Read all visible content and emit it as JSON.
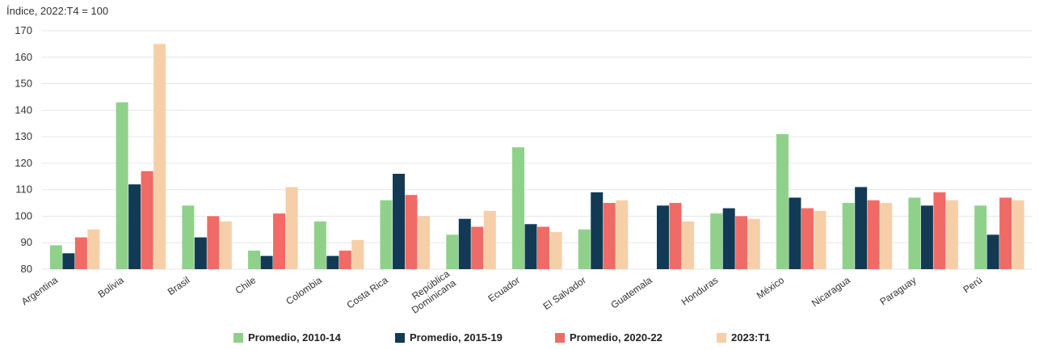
{
  "chart_data": {
    "type": "bar",
    "title": "",
    "unit_label": "Índice, 2022:T4 = 100",
    "ylim": [
      80,
      170
    ],
    "yticks": [
      80,
      90,
      100,
      110,
      120,
      130,
      140,
      150,
      160,
      170
    ],
    "grid": true,
    "legend_position": "bottom",
    "categories": [
      [
        "Argentina"
      ],
      [
        "Bolivia"
      ],
      [
        "Brasil"
      ],
      [
        "Chile"
      ],
      [
        "Colombia"
      ],
      [
        "Costa Rica"
      ],
      [
        "República",
        "Dominicana"
      ],
      [
        "Ecuador"
      ],
      [
        "El Salvador"
      ],
      [
        "Guatemala"
      ],
      [
        "Honduras"
      ],
      [
        "México"
      ],
      [
        "Nicaragua"
      ],
      [
        "Paraguay"
      ],
      [
        "Perú"
      ]
    ],
    "series": [
      {
        "name": "Promedio, 2010-14",
        "color": "#8fd18a",
        "values": [
          89,
          143,
          104,
          87,
          98,
          106,
          93,
          126,
          95,
          null,
          101,
          131,
          105,
          107,
          104
        ]
      },
      {
        "name": "Promedio, 2015-19",
        "color": "#123a55",
        "values": [
          86,
          112,
          92,
          85,
          85,
          116,
          99,
          97,
          109,
          104,
          103,
          107,
          111,
          104,
          93
        ]
      },
      {
        "name": "Promedio, 2020-22",
        "color": "#f06a66",
        "values": [
          92,
          117,
          100,
          101,
          87,
          108,
          96,
          96,
          105,
          105,
          100,
          103,
          106,
          109,
          107
        ]
      },
      {
        "name": "2023:T1",
        "color": "#f6cfa8",
        "values": [
          95,
          165,
          98,
          111,
          91,
          100,
          102,
          94,
          106,
          98,
          99,
          102,
          105,
          106,
          106
        ]
      }
    ]
  }
}
